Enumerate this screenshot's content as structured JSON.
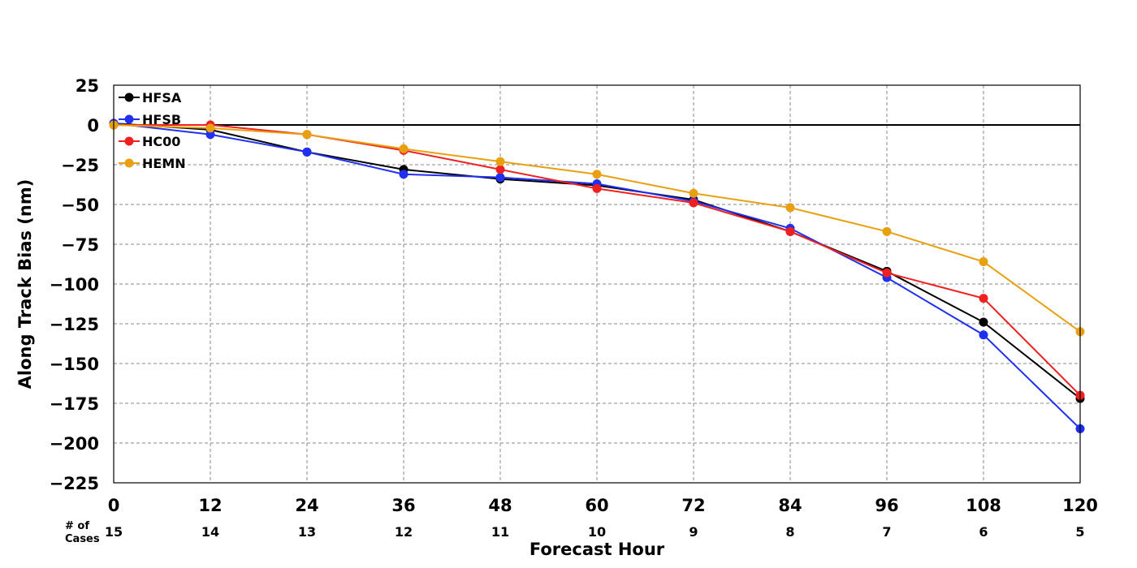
{
  "chart_data": {
    "type": "line",
    "xlabel": "Forecast Hour",
    "ylabel": "Along Track Bias (nm)",
    "x": [
      0,
      12,
      24,
      36,
      48,
      60,
      72,
      84,
      96,
      108,
      120
    ],
    "xlim": [
      0,
      120
    ],
    "ylim": [
      -225,
      25
    ],
    "xticks": [
      "0",
      "12",
      "24",
      "36",
      "48",
      "60",
      "72",
      "84",
      "96",
      "108",
      "120"
    ],
    "yticks": [
      25,
      0,
      -25,
      -50,
      -75,
      -100,
      -125,
      -150,
      -175,
      -200,
      -225
    ],
    "ytick_labels": [
      "25",
      "0",
      "−25",
      "−50",
      "−75",
      "−100",
      "−125",
      "−150",
      "−175",
      "−200",
      "−225"
    ],
    "grid": true,
    "legend_position": "top-left",
    "zero_line": true,
    "cases_caption": [
      "# of",
      "Cases"
    ],
    "cases": [
      "15",
      "14",
      "13",
      "12",
      "11",
      "10",
      "9",
      "8",
      "7",
      "6",
      "5"
    ],
    "series": [
      {
        "name": "HFSA",
        "color": "#000000",
        "values": [
          1,
          -3,
          -17,
          -28,
          -34,
          -38,
          -47,
          -67,
          -92,
          -124,
          -172
        ]
      },
      {
        "name": "HFSB",
        "color": "#2030f0",
        "values": [
          1,
          -6,
          -17,
          -31,
          -33,
          -37,
          -48,
          -65,
          -96,
          -132,
          -191
        ]
      },
      {
        "name": "HC00",
        "color": "#f02020",
        "values": [
          0,
          0,
          -6,
          -16,
          -28,
          -40,
          -49,
          -67,
          -93,
          -109,
          -170
        ]
      },
      {
        "name": "HEMN",
        "color": "#e8a010",
        "values": [
          0,
          -2,
          -6,
          -15,
          -23,
          -31,
          -43,
          -52,
          -67,
          -86,
          -130
        ]
      }
    ]
  }
}
